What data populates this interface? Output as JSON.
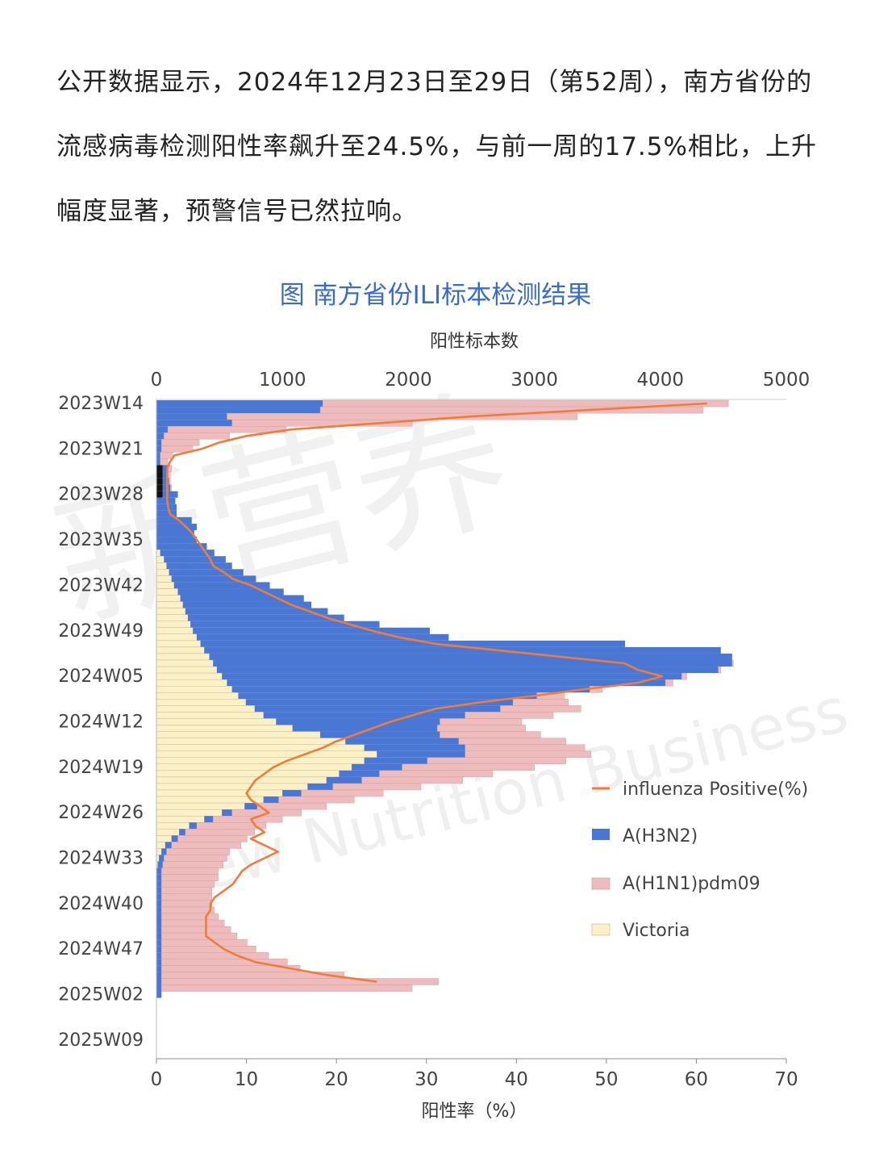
{
  "article": {
    "paragraph": "公开数据显示，2024年12月23日至29日（第52周），南方省份的流感病毒检测阳性率飙升至24.5%，与前一周的17.5%相比，上升幅度显著，预警信号已然拉响。"
  },
  "watermark": {
    "cn": "新营养",
    "en": "New Nutrition Business"
  },
  "chart_data": {
    "type": "bar",
    "orientation": "horizontal-stacked-with-line",
    "title": "图 南方省份ILI标本检测结果",
    "x_top_label": "阳性标本数",
    "x_top_range": [
      0,
      5000
    ],
    "x_top_ticks": [
      "0",
      "1000",
      "2000",
      "3000",
      "4000",
      "5000"
    ],
    "x_bottom_label": "阳性率（%）",
    "x_bottom_range": [
      0,
      70
    ],
    "x_bottom_ticks": [
      "0",
      "10",
      "20",
      "30",
      "40",
      "50",
      "60",
      "70"
    ],
    "y_tick_labels": [
      "2023W14",
      "2023W21",
      "2023W28",
      "2023W35",
      "2023W42",
      "2023W49",
      "2024W05",
      "2024W12",
      "2024W19",
      "2024W26",
      "2024W33",
      "2024W40",
      "2024W47",
      "2025W02",
      "2025W09"
    ],
    "legend_position": "right",
    "colors": {
      "h3n2": "#4a77d4",
      "h1n1": "#eebcbc",
      "victoria": "#fcf0c6",
      "line": "#ee7d3b",
      "other": "#111111"
    },
    "series_names": {
      "line": "influenza Positive(%)",
      "h3n2": "A(H3N2)",
      "h1n1": "A(H1N1)pdm09",
      "victoria": "Victoria"
    },
    "weeks": 92,
    "victoria": [
      0,
      0,
      0,
      0,
      0,
      0,
      0,
      0,
      0,
      0,
      0,
      0,
      0,
      0,
      0,
      0,
      0,
      0,
      0,
      0,
      0,
      0,
      0,
      30,
      60,
      80,
      100,
      120,
      140,
      170,
      190,
      210,
      230,
      250,
      270,
      290,
      320,
      350,
      380,
      420,
      450,
      480,
      520,
      560,
      600,
      650,
      710,
      780,
      850,
      950,
      1080,
      1300,
      1500,
      1650,
      1750,
      1650,
      1550,
      1450,
      1350,
      1200,
      1000,
      850,
      700,
      520,
      380,
      260,
      180,
      120,
      70,
      40,
      20,
      10,
      0,
      0,
      0,
      0,
      0,
      0,
      0,
      0,
      0,
      0,
      0,
      0,
      0,
      0,
      0,
      0,
      0,
      0,
      0,
      0
    ],
    "h3n2": [
      1320,
      1300,
      560,
      600,
      90,
      60,
      40,
      40,
      30,
      30,
      40,
      40,
      50,
      60,
      120,
      150,
      160,
      160,
      280,
      320,
      300,
      320,
      400,
      430,
      490,
      520,
      590,
      670,
      760,
      840,
      980,
      1020,
      1130,
      1240,
      1500,
      1880,
      2000,
      3370,
      4100,
      4150,
      4120,
      3980,
      3650,
      3480,
      2840,
      2370,
      2120,
      1950,
      1600,
      1300,
      1150,
      950,
      900,
      800,
      700,
      500,
      400,
      320,
      280,
      200,
      150,
      120,
      100,
      80,
      70,
      60,
      50,
      50,
      50,
      40,
      40,
      40,
      40,
      40,
      40,
      40,
      40,
      40,
      40,
      40,
      40,
      40,
      40,
      40,
      40,
      40,
      40,
      40,
      40,
      40,
      40,
      40
    ],
    "h1n1": [
      3220,
      3040,
      2780,
      1430,
      940,
      520,
      300,
      250,
      100,
      60,
      30,
      20,
      10,
      10,
      0,
      0,
      0,
      0,
      0,
      0,
      0,
      0,
      0,
      0,
      0,
      0,
      0,
      0,
      0,
      0,
      0,
      0,
      0,
      0,
      0,
      0,
      0,
      0,
      0,
      0,
      10,
      20,
      40,
      60,
      100,
      220,
      440,
      640,
      700,
      650,
      700,
      800,
      850,
      950,
      1000,
      1100,
      1050,
      900,
      800,
      700,
      650,
      600,
      550,
      550,
      550,
      550,
      550,
      550,
      550,
      500,
      500,
      480,
      450,
      450,
      420,
      400,
      400,
      400,
      420,
      450,
      500,
      550,
      600,
      680,
      750,
      850,
      1000,
      1100,
      1450,
      2200,
      1990,
      0
    ],
    "other": [
      0,
      0,
      0,
      0,
      0,
      0,
      0,
      0,
      0,
      0,
      0,
      0,
      0,
      0,
      0,
      0,
      0,
      0,
      0,
      0,
      0,
      0,
      0,
      0,
      0,
      0,
      0,
      0,
      0,
      0,
      0,
      0,
      0,
      0,
      0,
      0,
      0,
      0,
      0,
      0,
      0,
      0,
      0,
      0,
      0,
      0,
      0,
      0,
      0,
      0,
      0,
      0,
      0,
      0,
      0,
      0,
      0,
      0,
      0,
      0,
      0,
      0,
      0,
      0,
      0,
      0,
      0,
      0,
      0,
      0,
      0,
      0,
      0,
      0,
      0,
      0,
      0,
      0,
      0,
      0,
      0,
      0,
      0,
      0,
      0,
      0,
      0,
      0,
      0,
      0,
      0,
      0
    ],
    "other_weeks": [
      10,
      11,
      12,
      13,
      14
    ],
    "other_value": 50,
    "positive_rate": [
      61.2,
      48.0,
      35.0,
      25.0,
      15.0,
      10.0,
      7.0,
      5.0,
      2.0,
      1.5,
      1.2,
      1.2,
      1.2,
      1.2,
      1.2,
      1.2,
      1.3,
      1.5,
      2.5,
      3.3,
      4.0,
      4.5,
      5.0,
      5.5,
      6.0,
      6.3,
      7.5,
      8.5,
      10.5,
      12.0,
      13.5,
      15.0,
      17.0,
      19.0,
      21.5,
      24.0,
      27.0,
      31.0,
      38.0,
      45.0,
      52.0,
      53.5,
      56.2,
      53.5,
      47.5,
      42.0,
      36.0,
      31.0,
      28.5,
      26.0,
      24.0,
      22.0,
      20.0,
      18.5,
      16.5,
      14.5,
      13.0,
      12.0,
      11.0,
      10.5,
      10.0,
      10.5,
      11.5,
      12.5,
      10.5,
      11.0,
      12.0,
      10.5,
      12.0,
      13.5,
      12.0,
      10.5,
      9.5,
      9.0,
      8.5,
      7.5,
      6.5,
      6.0,
      6.0,
      5.5,
      5.5,
      5.5,
      5.5,
      6.5,
      7.5,
      9.0,
      11.0,
      15.0,
      19.0,
      24.5,
      null,
      null
    ]
  }
}
